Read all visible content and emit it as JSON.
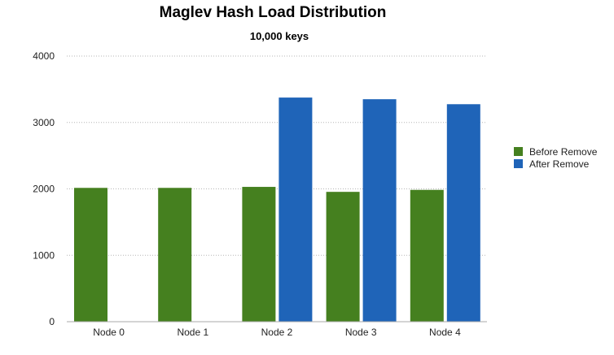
{
  "chart_data": {
    "type": "bar",
    "title": "Maglev Hash Load Distribution",
    "subtitle": "10,000 keys",
    "xlabel": "",
    "ylabel": "",
    "categories": [
      "Node 0",
      "Node 1",
      "Node 2",
      "Node 3",
      "Node 4"
    ],
    "series": [
      {
        "name": "Before Remove",
        "color": "#45801f",
        "values": [
          2015,
          2015,
          2030,
          1955,
          1985
        ]
      },
      {
        "name": "After Remove",
        "color": "#1f64b8",
        "values": [
          0,
          0,
          3375,
          3350,
          3275
        ]
      }
    ],
    "ylim": [
      0,
      4000
    ],
    "yticks": [
      0,
      1000,
      2000,
      3000,
      4000
    ],
    "grid": true,
    "legend_position": "right"
  }
}
